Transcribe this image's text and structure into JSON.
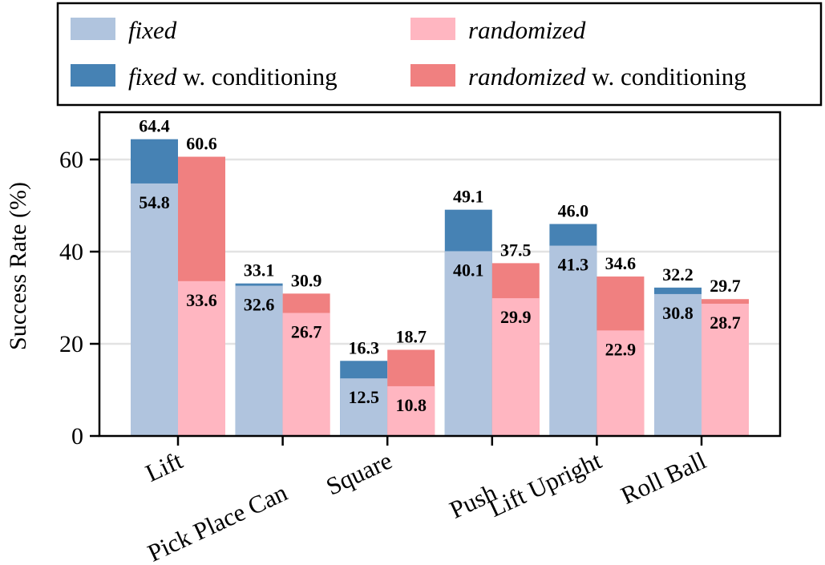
{
  "chart_data": {
    "type": "bar",
    "ylabel": "Success Rate (%)",
    "xlabel": "",
    "ylim": [
      0,
      70
    ],
    "yticks": [
      0,
      20,
      40,
      60
    ],
    "grid": "horizontal",
    "categories": [
      "Lift",
      "Pick Place Can",
      "Square",
      "Push",
      "Lift Upright",
      "Roll Ball"
    ],
    "series": [
      {
        "name": "fixed",
        "color": "#b0c4de",
        "values": [
          54.8,
          32.6,
          12.5,
          40.1,
          41.3,
          30.8
        ]
      },
      {
        "name": "fixed w. conditioning",
        "color": "#4682b4",
        "values": [
          64.4,
          33.1,
          16.3,
          49.1,
          46.0,
          32.2
        ]
      },
      {
        "name": "randomized",
        "color": "#ffb6c1",
        "values": [
          33.6,
          26.7,
          10.8,
          29.9,
          22.9,
          28.7
        ]
      },
      {
        "name": "randomized w. conditioning",
        "color": "#f08080",
        "values": [
          60.6,
          30.9,
          18.7,
          37.5,
          34.6,
          29.7
        ]
      }
    ],
    "legend": {
      "placement": "top",
      "entries": [
        {
          "italic": "fixed",
          "plain": ""
        },
        {
          "italic": "randomized",
          "plain": ""
        },
        {
          "italic": "fixed",
          "plain": " w. conditioning"
        },
        {
          "italic": "randomized",
          "plain": " w. conditioning"
        }
      ]
    }
  }
}
